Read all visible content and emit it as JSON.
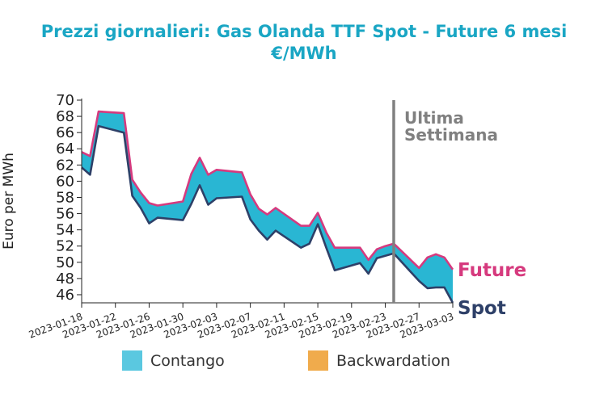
{
  "chart_data": {
    "type": "area",
    "title": "Prezzi giornalieri: Gas Olanda TTF Spot - Future 6 mesi",
    "subtitle": "€/MWh",
    "ylabel": "Euro per MWh",
    "xlabel": "",
    "ylim": [
      45,
      70
    ],
    "y_ticks": [
      46,
      48,
      50,
      52,
      54,
      56,
      58,
      60,
      62,
      64,
      66,
      68,
      70
    ],
    "x_start": "2023-01-18",
    "x_end": "2023-03-03",
    "x_ticks": [
      "2023-01-18",
      "2023-01-22",
      "2023-01-26",
      "2023-01-30",
      "2023-02-03",
      "2023-02-07",
      "2023-02-11",
      "2023-02-15",
      "2023-02-19",
      "2023-02-23",
      "2023-02-27",
      "2023-03-03"
    ],
    "x": [
      "2023-01-18",
      "2023-01-19",
      "2023-01-20",
      "2023-01-23",
      "2023-01-24",
      "2023-01-25",
      "2023-01-26",
      "2023-01-27",
      "2023-01-30",
      "2023-01-31",
      "2023-02-01",
      "2023-02-02",
      "2023-02-03",
      "2023-02-06",
      "2023-02-07",
      "2023-02-08",
      "2023-02-09",
      "2023-02-10",
      "2023-02-13",
      "2023-02-14",
      "2023-02-15",
      "2023-02-16",
      "2023-02-17",
      "2023-02-20",
      "2023-02-21",
      "2023-02-22",
      "2023-02-23",
      "2023-02-24",
      "2023-02-27",
      "2023-02-28",
      "2023-03-01",
      "2023-03-02",
      "2023-03-03"
    ],
    "series": [
      {
        "name": "Spot",
        "color": "#2e4068",
        "values": [
          61.7,
          60.8,
          66.8,
          66.0,
          58.2,
          56.7,
          54.8,
          55.5,
          55.2,
          57.2,
          59.5,
          57.1,
          57.9,
          58.1,
          55.3,
          53.9,
          52.8,
          53.9,
          51.8,
          52.3,
          54.7,
          51.8,
          49.0,
          49.9,
          48.6,
          50.5,
          50.8,
          51.1,
          47.7,
          46.8,
          46.9,
          46.9,
          45.0
        ]
      },
      {
        "name": "Future",
        "color": "#d63a7e",
        "values": [
          63.6,
          63.1,
          68.6,
          68.4,
          60.2,
          58.6,
          57.3,
          57.0,
          57.5,
          60.9,
          62.9,
          60.8,
          61.4,
          61.1,
          58.4,
          56.6,
          55.9,
          56.7,
          54.5,
          54.5,
          56.1,
          53.7,
          51.8,
          51.8,
          50.3,
          51.6,
          52.0,
          52.3,
          49.3,
          50.6,
          51.0,
          50.6,
          49.1
        ]
      }
    ],
    "fill_colors": {
      "contango": "#29b6d3",
      "backwardation": "#f0a643"
    },
    "legend": {
      "placement": "bottom",
      "items": [
        {
          "label": "Contango",
          "color": "#5ac8e0"
        },
        {
          "label": "Backwardation",
          "color": "#f0ab4c"
        }
      ]
    },
    "annotation": {
      "date": "2023-02-24",
      "text_lines": [
        "Ultima",
        "Settimana"
      ],
      "color": "#808080"
    },
    "series_labels": {
      "future": "Future",
      "spot": "Spot"
    },
    "grid": false
  }
}
